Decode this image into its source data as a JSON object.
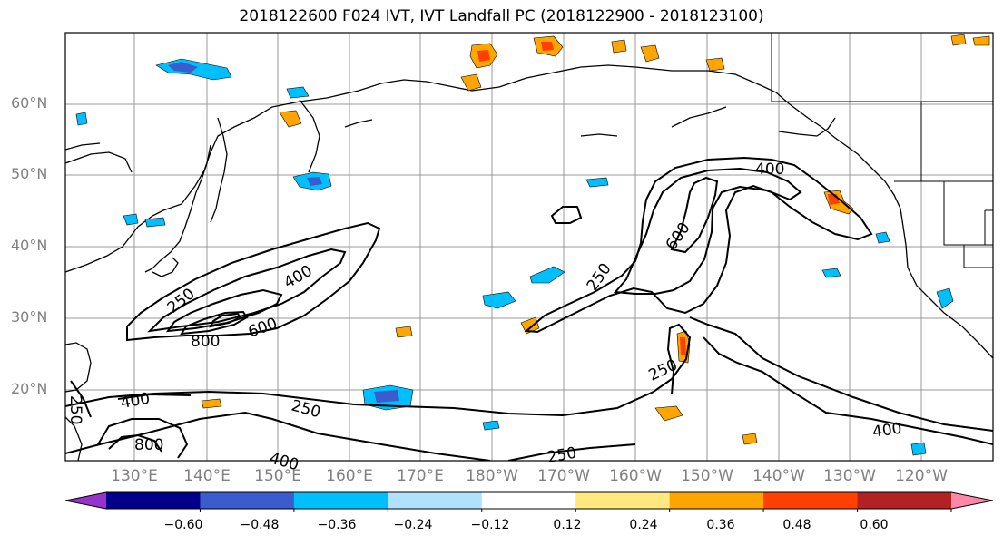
{
  "title": "2018122600 F024 IVT, IVT Landfall PC (2018122900 - 2018123100)",
  "latitude_labels": [
    "60°N",
    "50°N",
    "40°N",
    "30°N",
    "20°N"
  ],
  "longitude_labels": [
    "130°E",
    "140°E",
    "150°E",
    "160°E",
    "170°E",
    "180°W",
    "170°W",
    "160°W",
    "150°W",
    "140°W",
    "130°W",
    "120°W"
  ],
  "contour_labels": [
    "400",
    "600",
    "250",
    "400",
    "250",
    "600",
    "800",
    "250",
    "250",
    "400",
    "800",
    "250",
    "400",
    "400",
    "250"
  ],
  "colorbar": {
    "tick_labels": [
      "−0.60",
      "−0.48",
      "−0.36",
      "−0.24",
      "−0.12",
      "0.12",
      "0.24",
      "0.36",
      "0.48",
      "0.60"
    ],
    "colors": [
      "#9932cc",
      "#00008b",
      "#3a5ccc",
      "#00bfff",
      "#b0e2ff",
      "#ffffff",
      "#ffe880",
      "#ffa500",
      "#ff4000",
      "#b22222",
      "#ff88aa"
    ]
  }
}
